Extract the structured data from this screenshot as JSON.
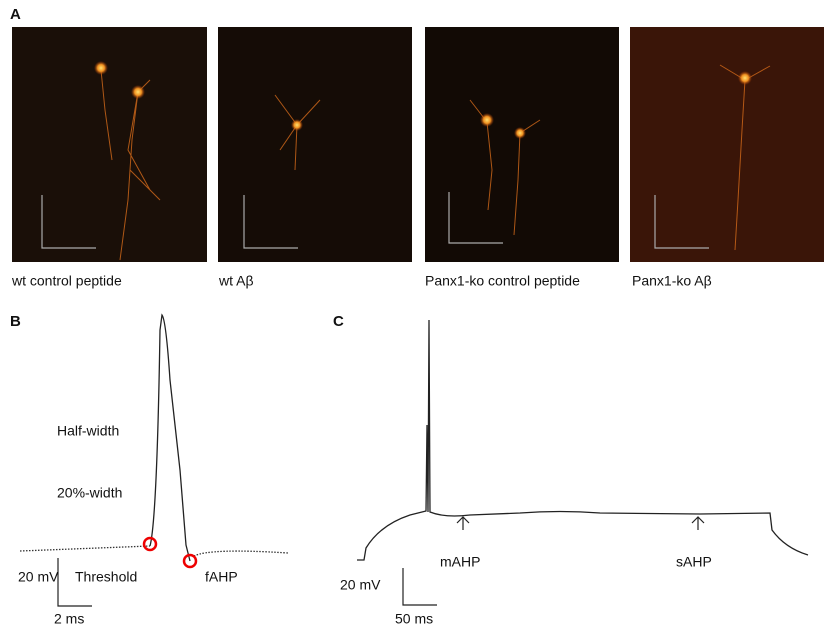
{
  "panel_a": {
    "label": "A",
    "images": [
      {
        "caption": "wt control peptide"
      },
      {
        "caption": "wt Aβ"
      },
      {
        "caption": "Panx1-ko control peptide"
      },
      {
        "caption": "Panx1-ko Aβ"
      }
    ]
  },
  "panel_b": {
    "label": "B",
    "annotations": [
      "Half-width",
      "20%-width",
      "Threshold",
      "fAHP"
    ],
    "scale_bar": {
      "voltage": "20 mV",
      "time": "2 ms"
    }
  },
  "panel_c": {
    "label": "C",
    "annotations": [
      "mAHP",
      "sAHP"
    ],
    "scale_bar": {
      "voltage": "20 mV",
      "time": "50 ms"
    }
  }
}
